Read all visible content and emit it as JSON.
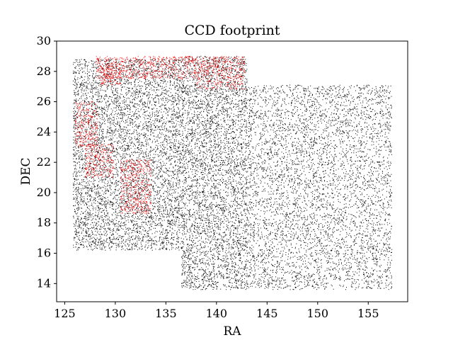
{
  "chart_data": {
    "type": "scatter",
    "title": "CCD footprint",
    "xlabel": "RA",
    "ylabel": "DEC",
    "xlim": [
      124.2,
      158.9
    ],
    "ylim": [
      12.8,
      30.0
    ],
    "xticks": [
      125,
      130,
      135,
      140,
      145,
      150,
      155
    ],
    "yticks": [
      14,
      16,
      18,
      20,
      22,
      24,
      26,
      28,
      30
    ],
    "grid": false,
    "legend": "none",
    "series": [
      {
        "color": "#000000",
        "marker": "pixel",
        "regions": [
          {
            "x": [
              125.8,
              136.5
            ],
            "y": [
              16.2,
              28.8
            ]
          },
          {
            "x": [
              136.5,
              143.0
            ],
            "y": [
              13.6,
              29.0
            ]
          },
          {
            "x": [
              143.0,
              157.3
            ],
            "y": [
              13.6,
              27.1
            ]
          }
        ]
      },
      {
        "color": "#ff0000",
        "marker": "pixel",
        "regions": [
          {
            "x": [
              128.0,
              138.0
            ],
            "y": [
              27.5,
              29.0
            ]
          },
          {
            "x": [
              138.0,
              142.8
            ],
            "y": [
              26.8,
              29.0
            ]
          },
          {
            "x": [
              126.0,
              128.2
            ],
            "y": [
              23.0,
              26.0
            ]
          },
          {
            "x": [
              127.0,
              129.8
            ],
            "y": [
              21.0,
              23.2
            ]
          },
          {
            "x": [
              130.5,
              133.5
            ],
            "y": [
              18.6,
              22.2
            ]
          },
          {
            "x": [
              128.5,
              130.5
            ],
            "y": [
              27.0,
              28.5
            ]
          }
        ]
      }
    ]
  }
}
